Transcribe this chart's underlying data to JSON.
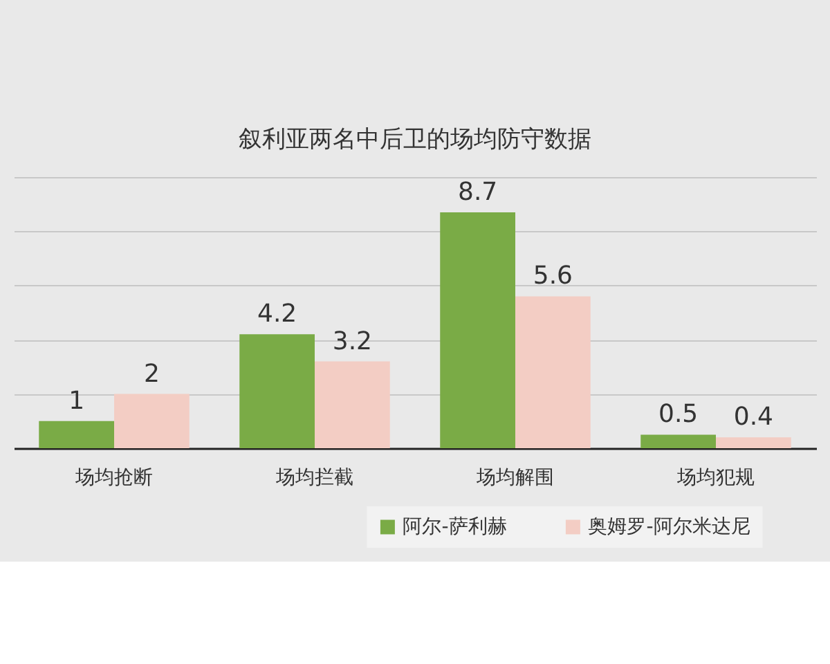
{
  "chart_data": {
    "type": "bar",
    "title": "叙利亚两名中后卫的场均防守数据",
    "categories": [
      "场均抢断",
      "场均拦截",
      "场均解围",
      "场均犯规"
    ],
    "series": [
      {
        "name": "阿尔-萨利赫",
        "color": "#7aab46",
        "values": [
          1,
          4.2,
          8.7,
          0.5
        ]
      },
      {
        "name": "奥姆罗-阿尔米达尼",
        "color": "#f3cdc4",
        "values": [
          2,
          3.2,
          5.6,
          0.4
        ]
      }
    ],
    "ylim": [
      0,
      10
    ],
    "yticks": [
      {
        "value": 0,
        "label": null
      },
      {
        "value": 2,
        "label": null
      },
      {
        "value": 4,
        "label": null
      },
      {
        "value": 6,
        "label": null
      },
      {
        "value": 8,
        "label": null
      },
      {
        "value": 10,
        "label": null
      }
    ],
    "grid": "y",
    "legend": "bottom right",
    "tick_labels": "x",
    "data_labels": true
  }
}
